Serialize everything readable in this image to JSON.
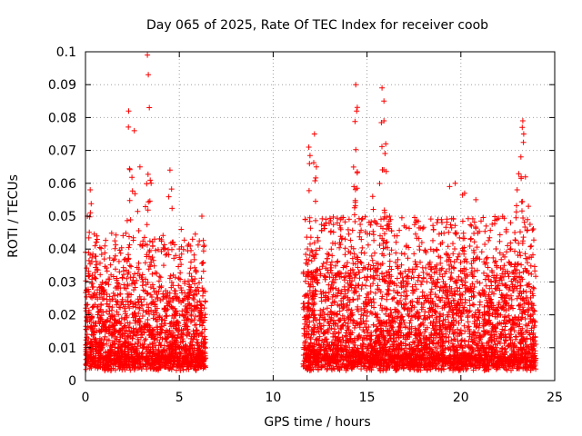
{
  "chart_data": {
    "type": "scatter",
    "title": "Day 065 of 2025, Rate Of TEC Index for receiver coob",
    "xlabel": "GPS time / hours",
    "ylabel": "ROTI / TECUs",
    "xlim": [
      0,
      25
    ],
    "ylim": [
      0,
      0.1
    ],
    "x_ticks": [
      "0",
      "5",
      "10",
      "15",
      "20",
      "25"
    ],
    "x_tick_values": [
      0,
      5,
      10,
      15,
      20,
      25
    ],
    "y_ticks": [
      "0",
      "0.01",
      "0.02",
      "0.03",
      "0.04",
      "0.05",
      "0.06",
      "0.07",
      "0.08",
      "0.09",
      "0.1"
    ],
    "y_tick_values": [
      0,
      0.01,
      0.02,
      0.03,
      0.04,
      0.05,
      0.06,
      0.07,
      0.08,
      0.09,
      0.1
    ],
    "grid": true,
    "marker": "+",
    "color": "#ff0000",
    "series": [
      {
        "name": "ROTI",
        "data_segments": [
          {
            "x_start": 0.0,
            "x_end": 6.4,
            "typical_min": 0.005,
            "typical_max": 0.03
          },
          {
            "x_start": 11.6,
            "x_end": 24.0,
            "typical_min": 0.005,
            "typical_max": 0.035
          }
        ],
        "peaks": [
          {
            "x": 0.1,
            "y": 0.05
          },
          {
            "x": 0.25,
            "y": 0.058
          },
          {
            "x": 0.6,
            "y": 0.044
          },
          {
            "x": 2.3,
            "y": 0.082
          },
          {
            "x": 2.6,
            "y": 0.076
          },
          {
            "x": 2.9,
            "y": 0.065
          },
          {
            "x": 3.3,
            "y": 0.099
          },
          {
            "x": 3.35,
            "y": 0.093
          },
          {
            "x": 3.4,
            "y": 0.083
          },
          {
            "x": 3.5,
            "y": 0.06
          },
          {
            "x": 4.5,
            "y": 0.064
          },
          {
            "x": 5.1,
            "y": 0.046
          },
          {
            "x": 6.2,
            "y": 0.05
          },
          {
            "x": 11.9,
            "y": 0.071
          },
          {
            "x": 12.2,
            "y": 0.075
          },
          {
            "x": 12.3,
            "y": 0.065
          },
          {
            "x": 14.4,
            "y": 0.09
          },
          {
            "x": 14.45,
            "y": 0.082
          },
          {
            "x": 14.3,
            "y": 0.059
          },
          {
            "x": 15.3,
            "y": 0.056
          },
          {
            "x": 15.8,
            "y": 0.089
          },
          {
            "x": 15.9,
            "y": 0.079
          },
          {
            "x": 16.0,
            "y": 0.072
          },
          {
            "x": 16.2,
            "y": 0.05
          },
          {
            "x": 19.4,
            "y": 0.059
          },
          {
            "x": 19.7,
            "y": 0.06
          },
          {
            "x": 20.2,
            "y": 0.057
          },
          {
            "x": 20.8,
            "y": 0.055
          },
          {
            "x": 23.0,
            "y": 0.058
          },
          {
            "x": 23.2,
            "y": 0.068
          },
          {
            "x": 23.3,
            "y": 0.079
          },
          {
            "x": 23.35,
            "y": 0.075
          },
          {
            "x": 23.6,
            "y": 0.053
          }
        ]
      }
    ]
  }
}
